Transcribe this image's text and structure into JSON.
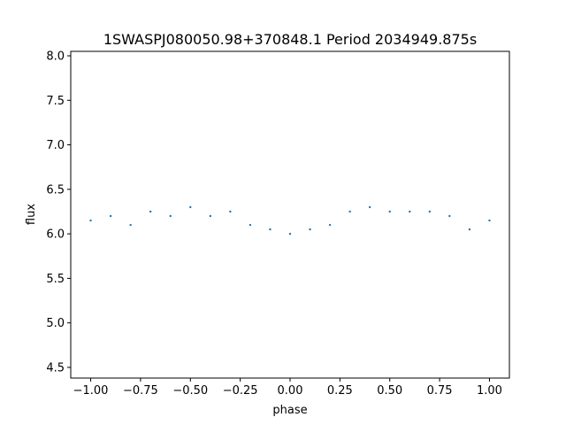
{
  "chart_data": {
    "type": "scatter",
    "title": "1SWASPJ080050.98+370848.1 Period 2034949.875s",
    "xlabel": "phase",
    "ylabel": "flux",
    "xlim": [
      -1.1,
      1.1
    ],
    "ylim": [
      4.38,
      8.05
    ],
    "x_ticks": [
      -1.0,
      -0.75,
      -0.5,
      -0.25,
      0.0,
      0.25,
      0.5,
      0.75,
      1.0
    ],
    "x_tick_labels": [
      "−1.00",
      "−0.75",
      "−0.50",
      "−0.25",
      "0.00",
      "0.25",
      "0.50",
      "0.75",
      "1.00"
    ],
    "y_ticks": [
      4.5,
      5.0,
      5.5,
      6.0,
      6.5,
      7.0,
      7.5,
      8.0
    ],
    "y_tick_labels": [
      "4.5",
      "5.0",
      "5.5",
      "6.0",
      "6.5",
      "7.0",
      "7.5",
      "8.0"
    ],
    "grid": false,
    "marker_color": "#1f77b4",
    "series": [
      {
        "x": [
          -1.0,
          -0.9,
          -0.8,
          -0.7,
          -0.6,
          -0.5,
          -0.4,
          -0.3,
          -0.2,
          -0.1,
          0.0,
          0.1,
          0.2,
          0.3,
          0.4,
          0.5,
          0.6,
          0.7,
          0.8,
          0.9,
          1.0
        ],
        "y": [
          6.15,
          6.2,
          6.1,
          6.25,
          6.2,
          6.3,
          6.2,
          6.25,
          6.1,
          6.05,
          6.0,
          6.05,
          6.1,
          6.25,
          6.3,
          6.25,
          6.25,
          6.25,
          6.2,
          6.05,
          6.15
        ]
      }
    ]
  }
}
